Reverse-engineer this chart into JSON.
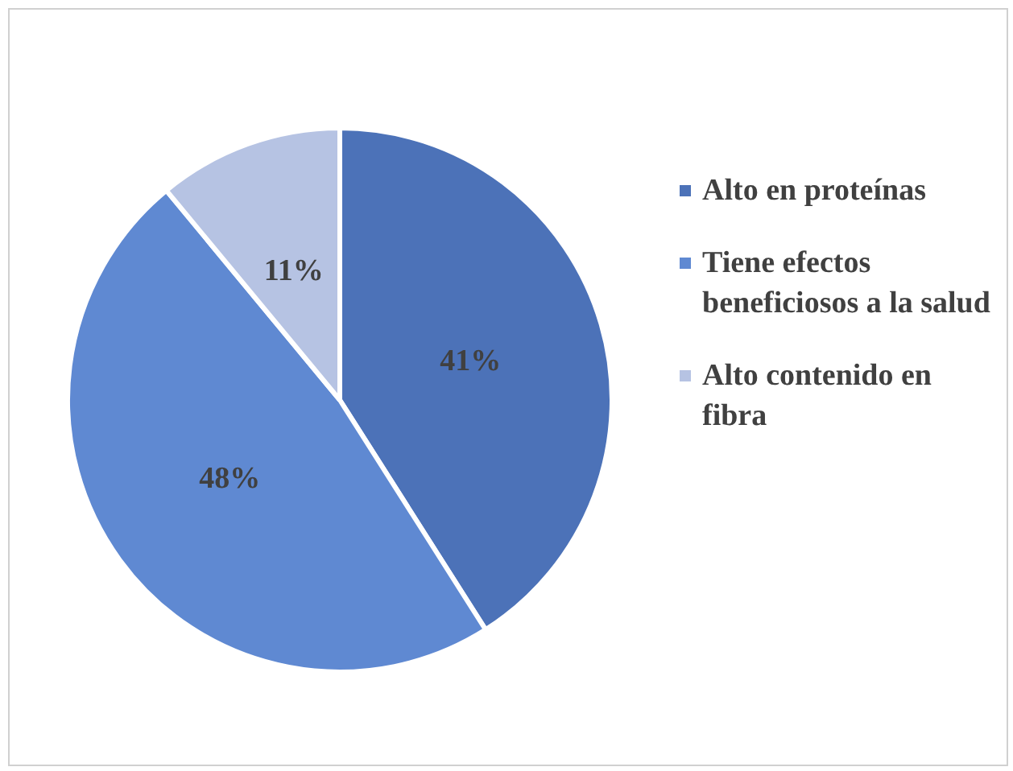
{
  "chart_data": {
    "type": "pie",
    "categories": [
      "Alto en proteínas",
      "Tiene efectos beneficiosos a la salud",
      "Alto contenido en fibra"
    ],
    "values": [
      41,
      48,
      11
    ],
    "colors": [
      "#4c72b8",
      "#5f89d2",
      "#b6c3e3"
    ],
    "value_labels": [
      "41%",
      "48%",
      "11%"
    ],
    "legend": "right"
  }
}
